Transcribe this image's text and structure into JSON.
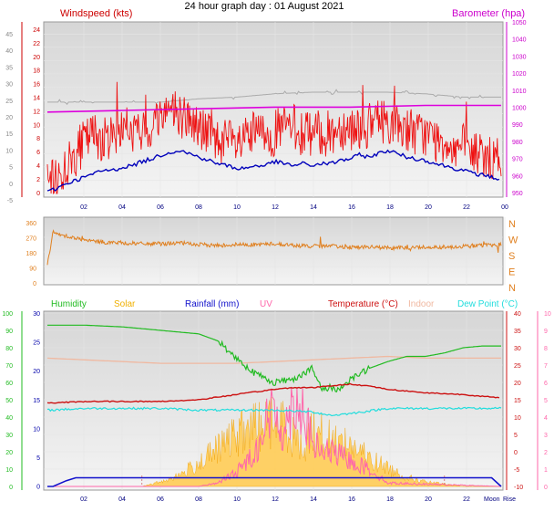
{
  "title": "24 hour graph day : 01 August 2021",
  "colors": {
    "wind": "#ee1111",
    "gust_avg": "#0000bb",
    "baro": "#dd00dd",
    "baro_trace": "#aaaaaa",
    "dir": "#e08020",
    "humidity": "#22bb22",
    "solar": "#f0b000",
    "rain": "#1111cc",
    "uv": "#ff66aa",
    "temperature": "#cc1111",
    "indoor": "#f0b8a0",
    "dewpoint": "#22dddd"
  },
  "x_ticks": [
    "02",
    "04",
    "06",
    "08",
    "10",
    "12",
    "14",
    "16",
    "18",
    "20",
    "22",
    "00"
  ],
  "x_ticks_bottom": [
    "02",
    "04",
    "06",
    "08",
    "10",
    "12",
    "14",
    "16",
    "18",
    "20",
    "22"
  ],
  "bottom_right_labels": [
    "Moon",
    "Rise"
  ],
  "chart_data": [
    {
      "type": "line",
      "name": "wind",
      "label_left": "Windspeed (kts)",
      "label_right": "Barometer (hpa)",
      "left_outer_ticks": [
        "45",
        "40",
        "35",
        "30",
        "25",
        "20",
        "15",
        "10",
        "5",
        "0",
        "-5"
      ],
      "left_inner_ticks": [
        "24",
        "22",
        "20",
        "18",
        "16",
        "14",
        "12",
        "10",
        "8",
        "6",
        "4",
        "2",
        "0"
      ],
      "right_ticks": [
        "1050",
        "1040",
        "1030",
        "1020",
        "1010",
        "1000",
        "990",
        "980",
        "970",
        "960",
        "950"
      ],
      "ylim": [
        0,
        25
      ],
      "baro_ylim": [
        950,
        1050
      ],
      "series": [
        {
          "key": "wind",
          "x": [
            0,
            0.5,
            1,
            1.5,
            2,
            2.5,
            3,
            3.5,
            4,
            4.5,
            5,
            5.5,
            6,
            6.5,
            7,
            7.5,
            8,
            8.5,
            9,
            9.5,
            10,
            10.5,
            11,
            11.5,
            12,
            12.5,
            13,
            13.5,
            14,
            14.5,
            15,
            15.5,
            16,
            16.5,
            17,
            17.5,
            18,
            18.5,
            19,
            19.5,
            20,
            20.5,
            21,
            21.5,
            22,
            22.5,
            23,
            23.5,
            24
          ],
          "values": [
            1,
            2,
            4,
            6,
            8,
            9,
            8,
            9,
            10,
            9,
            9,
            10,
            12,
            13,
            12,
            11,
            10,
            9,
            8,
            8,
            7,
            8,
            9,
            9,
            9,
            10,
            10,
            9,
            9,
            9,
            9,
            10,
            10,
            10,
            10,
            11,
            11,
            10,
            10,
            9,
            9,
            8,
            8,
            7,
            7,
            6,
            6,
            5,
            5
          ]
        },
        {
          "key": "gust_avg",
          "x": [
            0,
            0.5,
            1,
            1.5,
            2,
            2.5,
            3,
            3.5,
            4,
            4.5,
            5,
            5.5,
            6,
            6.5,
            7,
            7.5,
            8,
            8.5,
            9,
            9.5,
            10,
            10.5,
            11,
            11.5,
            12,
            12.5,
            13,
            13.5,
            14,
            14.5,
            15,
            15.5,
            16,
            16.5,
            17,
            17.5,
            18,
            18.5,
            19,
            19.5,
            20,
            20.5,
            21,
            21.5,
            22,
            22.5,
            23,
            23.5,
            24
          ],
          "values": [
            0.2,
            0.8,
            1.5,
            2,
            2.5,
            3,
            3.5,
            3.5,
            4,
            4.2,
            4.8,
            5.2,
            5.8,
            6.2,
            6.5,
            6,
            5.5,
            5,
            4.5,
            4.2,
            3.8,
            3.8,
            4.2,
            4.2,
            4.8,
            4.5,
            4.2,
            4.5,
            4.2,
            4.5,
            4.5,
            5,
            5.2,
            5.8,
            5.5,
            6,
            6.5,
            6,
            5.5,
            5.2,
            5,
            4.5,
            4.2,
            3.8,
            3.5,
            3,
            2.8,
            2.5,
            2
          ]
        },
        {
          "key": "baro",
          "x": [
            0,
            4,
            8,
            12,
            16,
            20,
            24
          ],
          "values": [
            999,
            1000,
            1001,
            1002,
            1002,
            1003,
            1003
          ]
        },
        {
          "key": "baro_trace",
          "x": [
            0,
            3,
            6,
            8,
            10,
            12,
            14,
            16,
            18,
            20,
            22,
            24
          ],
          "values": [
            1005,
            1005,
            1005,
            1007,
            1008,
            1010,
            1011,
            1011,
            1011,
            1010,
            1008,
            1008
          ]
        }
      ]
    },
    {
      "type": "line",
      "name": "wind-direction",
      "left_ticks": [
        "360",
        "270",
        "180",
        "90",
        "0"
      ],
      "right_labels": [
        "N",
        "W",
        "S",
        "E",
        "N"
      ],
      "ylim": [
        0,
        360
      ],
      "series": [
        {
          "key": "dir",
          "x": [
            0,
            0.3,
            0.5,
            1,
            2,
            3,
            4,
            5,
            6,
            7,
            8,
            9,
            10,
            11,
            12,
            13,
            14,
            15,
            16,
            17,
            18,
            19,
            20,
            21,
            22,
            23,
            24
          ],
          "values": [
            100,
            300,
            290,
            280,
            250,
            240,
            235,
            230,
            230,
            235,
            225,
            220,
            225,
            225,
            230,
            220,
            215,
            215,
            210,
            210,
            205,
            205,
            210,
            210,
            215,
            220,
            225
          ]
        }
      ]
    },
    {
      "type": "line",
      "name": "temperature",
      "labels": [
        "Humidity",
        "Solar",
        "Rainfall (mm)",
        "UV",
        "Temperature (°C)",
        "Indoor",
        "Dew Point (°C)"
      ],
      "left_ticks": [
        "100",
        "90",
        "80",
        "70",
        "60",
        "50",
        "40",
        "30",
        "20",
        "10",
        "0"
      ],
      "left_inner_ticks": [
        "30",
        "25",
        "20",
        "15",
        "10",
        "5",
        "0"
      ],
      "right_ticks": [
        "40",
        "35",
        "30",
        "25",
        "20",
        "15",
        "10",
        "5",
        "0",
        "-5",
        "-10"
      ],
      "far_right_ticks": [
        "10",
        "9",
        "8",
        "7",
        "6",
        "5",
        "4",
        "3",
        "2",
        "1",
        "0"
      ],
      "series": [
        {
          "key": "humidity",
          "x": [
            0,
            2,
            4,
            6,
            8,
            9,
            10,
            11,
            12,
            13,
            14,
            14.5,
            15,
            15.5,
            16,
            17,
            18,
            19,
            20,
            21,
            22,
            23,
            24
          ],
          "values": [
            93,
            93,
            92,
            90,
            88,
            84,
            74,
            65,
            60,
            62,
            68,
            56,
            57,
            56,
            62,
            68,
            72,
            75,
            75,
            77,
            80,
            81,
            81
          ]
        },
        {
          "key": "temperature",
          "x": [
            0,
            2,
            4,
            6,
            8,
            10,
            12,
            13,
            14,
            15,
            16,
            17,
            18,
            20,
            22,
            24
          ],
          "values": [
            14,
            14.5,
            14.5,
            14.5,
            15,
            16.5,
            18,
            18.5,
            18.5,
            19,
            19.5,
            19,
            18,
            17,
            16.5,
            15.5
          ]
        },
        {
          "key": "indoor",
          "x": [
            0,
            2,
            4,
            6,
            8,
            10,
            12,
            14,
            16,
            18,
            20,
            22,
            24
          ],
          "values": [
            27,
            26.5,
            26,
            25.5,
            25.5,
            25.5,
            26,
            26.5,
            27,
            27.5,
            27,
            27,
            27
          ]
        },
        {
          "key": "dewpoint",
          "x": [
            0,
            2,
            4,
            6,
            8,
            10,
            12,
            14,
            15,
            16,
            18,
            20,
            22,
            24
          ],
          "values": [
            12,
            12.5,
            12.5,
            12.5,
            12,
            12,
            12,
            11.5,
            10.5,
            11,
            12.5,
            12.5,
            12.5,
            12.5
          ]
        },
        {
          "key": "solar",
          "x": [
            0,
            5,
            6,
            7,
            8,
            9,
            10,
            11,
            12,
            12.5,
            13,
            13.5,
            14,
            15,
            16,
            17,
            18,
            19,
            20,
            21,
            22,
            24
          ],
          "values": [
            0,
            0,
            1,
            2.5,
            5,
            8,
            11,
            13,
            14,
            13.5,
            11,
            8,
            12,
            10,
            9,
            6,
            4,
            2,
            1,
            0.5,
            0,
            0
          ]
        },
        {
          "key": "uv",
          "x": [
            0,
            8,
            9,
            10,
            11,
            11.5,
            12,
            12.5,
            13,
            13.5,
            14,
            14.5,
            15,
            16,
            17,
            18,
            24
          ],
          "values": [
            0,
            0,
            0.2,
            0.8,
            2,
            3.5,
            4.5,
            3,
            5,
            4.5,
            2.5,
            2,
            2,
            1.5,
            1,
            0.2,
            0
          ]
        },
        {
          "key": "rain",
          "x": [
            0,
            0.3,
            1,
            1.5,
            23.5,
            24
          ],
          "values": [
            0,
            0,
            1,
            1.5,
            1.5,
            0
          ]
        }
      ]
    }
  ]
}
